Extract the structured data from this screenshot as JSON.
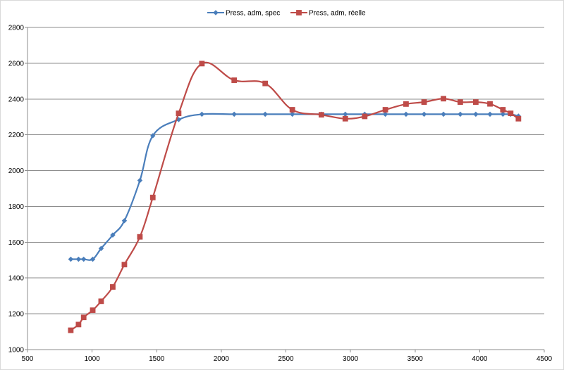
{
  "chart_data": {
    "type": "line",
    "title": "",
    "xlabel": "",
    "ylabel": "",
    "xlim": [
      500,
      4500
    ],
    "ylim": [
      1000,
      2800
    ],
    "x_ticks": [
      500,
      1000,
      1500,
      2000,
      2500,
      3000,
      3500,
      4000,
      4500
    ],
    "y_ticks": [
      1000,
      1200,
      1400,
      1600,
      1800,
      2000,
      2200,
      2400,
      2600,
      2800
    ],
    "grid": "horizontal",
    "legend_position": "top",
    "series": [
      {
        "name": "Press, adm, spec",
        "color": "#4a7ebb",
        "marker": "diamond",
        "points": [
          [
            835,
            1505
          ],
          [
            895,
            1505
          ],
          [
            935,
            1505
          ],
          [
            1005,
            1505
          ],
          [
            1070,
            1565
          ],
          [
            1160,
            1640
          ],
          [
            1250,
            1720
          ],
          [
            1370,
            1945
          ],
          [
            1470,
            2195
          ],
          [
            1670,
            2285
          ],
          [
            1850,
            2315
          ],
          [
            2100,
            2315
          ],
          [
            2340,
            2315
          ],
          [
            2550,
            2315
          ],
          [
            2775,
            2315
          ],
          [
            2960,
            2315
          ],
          [
            3110,
            2315
          ],
          [
            3270,
            2315
          ],
          [
            3430,
            2315
          ],
          [
            3570,
            2315
          ],
          [
            3720,
            2315
          ],
          [
            3850,
            2315
          ],
          [
            3970,
            2315
          ],
          [
            4080,
            2315
          ],
          [
            4180,
            2315
          ],
          [
            4240,
            2315
          ],
          [
            4300,
            2305
          ]
        ]
      },
      {
        "name": "Press, adm, réelle",
        "color": "#be4b48",
        "marker": "square",
        "points": [
          [
            835,
            1108
          ],
          [
            895,
            1140
          ],
          [
            935,
            1180
          ],
          [
            1005,
            1220
          ],
          [
            1070,
            1270
          ],
          [
            1160,
            1350
          ],
          [
            1250,
            1475
          ],
          [
            1370,
            1630
          ],
          [
            1470,
            1850
          ],
          [
            1670,
            2320
          ],
          [
            1850,
            2598
          ],
          [
            2100,
            2505
          ],
          [
            2340,
            2487
          ],
          [
            2550,
            2340
          ],
          [
            2775,
            2312
          ],
          [
            2960,
            2290
          ],
          [
            3110,
            2303
          ],
          [
            3270,
            2340
          ],
          [
            3430,
            2372
          ],
          [
            3570,
            2383
          ],
          [
            3720,
            2402
          ],
          [
            3850,
            2383
          ],
          [
            3970,
            2383
          ],
          [
            4080,
            2373
          ],
          [
            4180,
            2340
          ],
          [
            4240,
            2320
          ],
          [
            4300,
            2290
          ]
        ]
      }
    ]
  }
}
